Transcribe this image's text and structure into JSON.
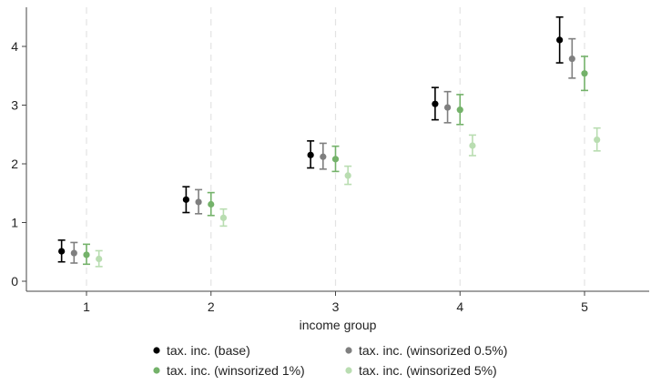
{
  "chart_data": {
    "type": "scatter",
    "xlabel": "income group",
    "ylabel": "",
    "title": "",
    "categories": [
      1,
      2,
      3,
      4,
      5
    ],
    "xticks": [
      1,
      2,
      3,
      4,
      5
    ],
    "yticks": [
      0,
      1,
      2,
      3,
      4
    ],
    "xlim": [
      0.5,
      5.5
    ],
    "ylim": [
      -0.15,
      4.6
    ],
    "grid": "vertical dashed at x ticks",
    "legend_position": "bottom",
    "error_bars": true,
    "series": [
      {
        "name": "tax. inc. (base)",
        "color": "#000000",
        "offset": -0.2,
        "values": [
          0.51,
          1.39,
          2.15,
          3.02,
          4.11
        ],
        "lower": [
          0.33,
          1.17,
          1.93,
          2.75,
          3.72
        ],
        "upper": [
          0.7,
          1.61,
          2.39,
          3.3,
          4.5
        ]
      },
      {
        "name": "tax. inc. (winsorized 0.5%)",
        "color": "#7f7f7f",
        "offset": -0.1,
        "values": [
          0.48,
          1.35,
          2.12,
          2.96,
          3.79
        ],
        "lower": [
          0.31,
          1.15,
          1.91,
          2.7,
          3.46
        ],
        "upper": [
          0.66,
          1.56,
          2.35,
          3.23,
          4.13
        ]
      },
      {
        "name": "tax. inc. (winsorized 1%)",
        "color": "#74b26a",
        "offset": 0.0,
        "values": [
          0.45,
          1.31,
          2.08,
          2.92,
          3.54
        ],
        "lower": [
          0.29,
          1.12,
          1.87,
          2.67,
          3.25
        ],
        "upper": [
          0.63,
          1.51,
          2.3,
          3.18,
          3.83
        ]
      },
      {
        "name": "tax. inc. (winsorized 5%)",
        "color": "#b9ddb1",
        "offset": 0.1,
        "values": [
          0.38,
          1.08,
          1.8,
          2.31,
          2.41
        ],
        "lower": [
          0.25,
          0.94,
          1.65,
          2.14,
          2.22
        ],
        "upper": [
          0.52,
          1.23,
          1.96,
          2.49,
          2.61
        ]
      }
    ]
  }
}
